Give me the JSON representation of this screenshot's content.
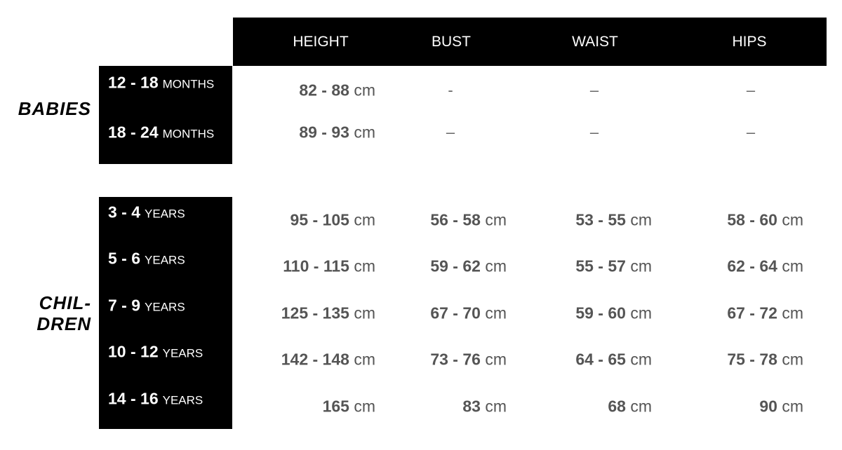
{
  "columns": [
    "HEIGHT",
    "BUST",
    "WAIST",
    "HIPS"
  ],
  "groups": [
    {
      "name": "BABIES",
      "rows": [
        {
          "range": "12 - 18",
          "unit": "MONTHS",
          "values": [
            {
              "num": "82 - 88",
              "unit": "cm"
            },
            {
              "dash": "-"
            },
            {
              "dash": "–"
            },
            {
              "dash": "–"
            }
          ]
        },
        {
          "range": "18 - 24",
          "unit": "MONTHS",
          "values": [
            {
              "num": "89 - 93",
              "unit": "cm"
            },
            {
              "dash": "–"
            },
            {
              "dash": "–"
            },
            {
              "dash": "–"
            }
          ]
        }
      ]
    },
    {
      "name_line1": "CHIL-",
      "name_line2": "DREN",
      "rows": [
        {
          "range": "3 - 4",
          "unit": "YEARS",
          "values": [
            {
              "num": "95 - 105",
              "unit": "cm"
            },
            {
              "num": "56 - 58",
              "unit": "cm"
            },
            {
              "num": "53 - 55",
              "unit": "cm"
            },
            {
              "num": "58 - 60",
              "unit": "cm"
            }
          ]
        },
        {
          "range": "5 - 6",
          "unit": "YEARS",
          "values": [
            {
              "num": "110 - 115",
              "unit": "cm"
            },
            {
              "num": "59 - 62",
              "unit": "cm"
            },
            {
              "num": "55 - 57",
              "unit": "cm"
            },
            {
              "num": "62 - 64",
              "unit": "cm"
            }
          ]
        },
        {
          "range": "7 - 9",
          "unit": "YEARS",
          "values": [
            {
              "num": "125 - 135",
              "unit": "cm"
            },
            {
              "num": "67 - 70",
              "unit": "cm"
            },
            {
              "num": "59 - 60",
              "unit": "cm"
            },
            {
              "num": "67 - 72",
              "unit": "cm"
            }
          ]
        },
        {
          "range": "10 - 12",
          "unit": "YEARS",
          "values": [
            {
              "num": "142 - 148",
              "unit": "cm"
            },
            {
              "num": "73 - 76",
              "unit": "cm"
            },
            {
              "num": "64 - 65",
              "unit": "cm"
            },
            {
              "num": "75 - 78",
              "unit": "cm"
            }
          ]
        },
        {
          "range": "14 - 16",
          "unit": "YEARS",
          "values": [
            {
              "num": "165",
              "unit": "cm"
            },
            {
              "num": "83",
              "unit": "cm"
            },
            {
              "num": "68",
              "unit": "cm"
            },
            {
              "num": "90",
              "unit": "cm"
            }
          ]
        }
      ]
    }
  ]
}
